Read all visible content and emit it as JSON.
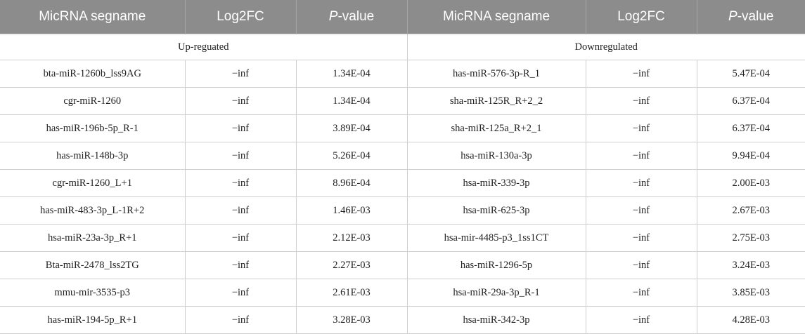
{
  "headers": {
    "left": {
      "name": "MicRNA segname",
      "fc": "Log2FC",
      "p_italic": "P",
      "p_rest": "-value"
    },
    "right": {
      "name": "MicRNA segname",
      "fc": "Log2FC",
      "p_italic": "P",
      "p_rest": "-value"
    }
  },
  "sections": {
    "up": "Up-reguated",
    "down": "Downregulated"
  },
  "rows": [
    {
      "up_name": "bta-miR-1260b_lss9AG",
      "up_fc": "−inf",
      "up_p": "1.34E-04",
      "down_name": "has-miR-576-3p-R_1",
      "down_fc": "−inf",
      "down_p": "5.47E-04"
    },
    {
      "up_name": "cgr-miR-1260",
      "up_fc": "−inf",
      "up_p": "1.34E-04",
      "down_name": "sha-miR-125R_R+2_2",
      "down_fc": "−inf",
      "down_p": "6.37E-04"
    },
    {
      "up_name": "has-miR-196b-5p_R-1",
      "up_fc": "−inf",
      "up_p": "3.89E-04",
      "down_name": "sha-miR-125a_R+2_1",
      "down_fc": "−inf",
      "down_p": "6.37E-04"
    },
    {
      "up_name": "has-miR-148b-3p",
      "up_fc": "−inf",
      "up_p": "5.26E-04",
      "down_name": "hsa-miR-130a-3p",
      "down_fc": "−inf",
      "down_p": "9.94E-04"
    },
    {
      "up_name": "cgr-miR-1260_L+1",
      "up_fc": "−inf",
      "up_p": "8.96E-04",
      "down_name": "hsa-miR-339-3p",
      "down_fc": "−inf",
      "down_p": "2.00E-03"
    },
    {
      "up_name": "has-miR-483-3p_L-1R+2",
      "up_fc": "−inf",
      "up_p": "1.46E-03",
      "down_name": "hsa-miR-625-3p",
      "down_fc": "−inf",
      "down_p": "2.67E-03"
    },
    {
      "up_name": "hsa-miR-23a-3p_R+1",
      "up_fc": "−inf",
      "up_p": "2.12E-03",
      "down_name": "hsa-mir-4485-p3_1ss1CT",
      "down_fc": "−inf",
      "down_p": "2.75E-03"
    },
    {
      "up_name": "Bta-miR-2478_lss2TG",
      "up_fc": "−inf",
      "up_p": "2.27E-03",
      "down_name": "has-miR-1296-5p",
      "down_fc": "−inf",
      "down_p": "3.24E-03"
    },
    {
      "up_name": "mmu-mir-3535-p3",
      "up_fc": "−inf",
      "up_p": "2.61E-03",
      "down_name": "hsa-miR-29a-3p_R-1",
      "down_fc": "−inf",
      "down_p": "3.85E-03"
    },
    {
      "up_name": "has-miR-194-5p_R+1",
      "up_fc": "−inf",
      "up_p": "3.28E-03",
      "down_name": "hsa-miR-342-3p",
      "down_fc": "−inf",
      "down_p": "4.28E-03"
    }
  ]
}
